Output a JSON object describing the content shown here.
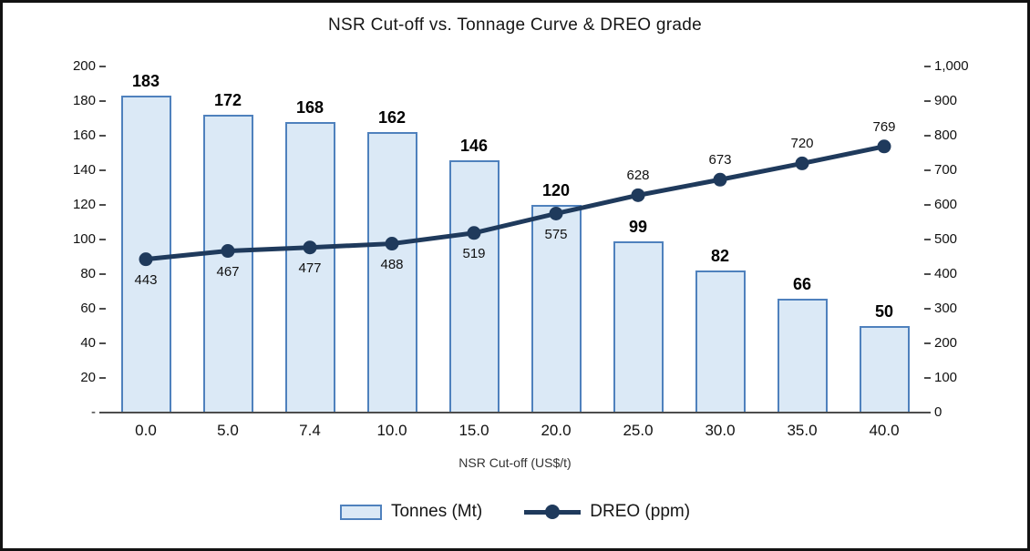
{
  "chart_data": {
    "type": "combo-bar-line",
    "title": "NSR Cut-off vs. Tonnage Curve & DREO grade",
    "xlabel": "NSR Cut-off (US$/t)",
    "categories": [
      "0.0",
      "5.0",
      "7.4",
      "10.0",
      "15.0",
      "20.0",
      "25.0",
      "30.0",
      "35.0",
      "40.0"
    ],
    "series": [
      {
        "name": "Tonnes (Mt)",
        "type": "bar",
        "axis": "left",
        "values": [
          183,
          172,
          168,
          162,
          146,
          120,
          99,
          82,
          66,
          50
        ]
      },
      {
        "name": "DREO (ppm)",
        "type": "line",
        "axis": "right",
        "values": [
          443,
          467,
          477,
          488,
          519,
          575,
          628,
          673,
          720,
          769
        ]
      }
    ],
    "left_axis": {
      "range": [
        0,
        200
      ],
      "ticks": [
        "200",
        "180",
        "160",
        "140",
        "120",
        "100",
        "80",
        "60",
        "40",
        "20",
        "-"
      ]
    },
    "right_axis": {
      "range": [
        0,
        1000
      ],
      "ticks": [
        "1,000",
        "900",
        "800",
        "700",
        "600",
        "500",
        "400",
        "300",
        "200",
        "100",
        "0"
      ]
    },
    "legend_position": "bottom",
    "grid": false
  },
  "colors": {
    "bar_fill": "#dbe9f6",
    "bar_border": "#4f81bd",
    "line": "#1f3a5c",
    "axis": "#4d4d4d",
    "text": "#1a1a1a"
  }
}
